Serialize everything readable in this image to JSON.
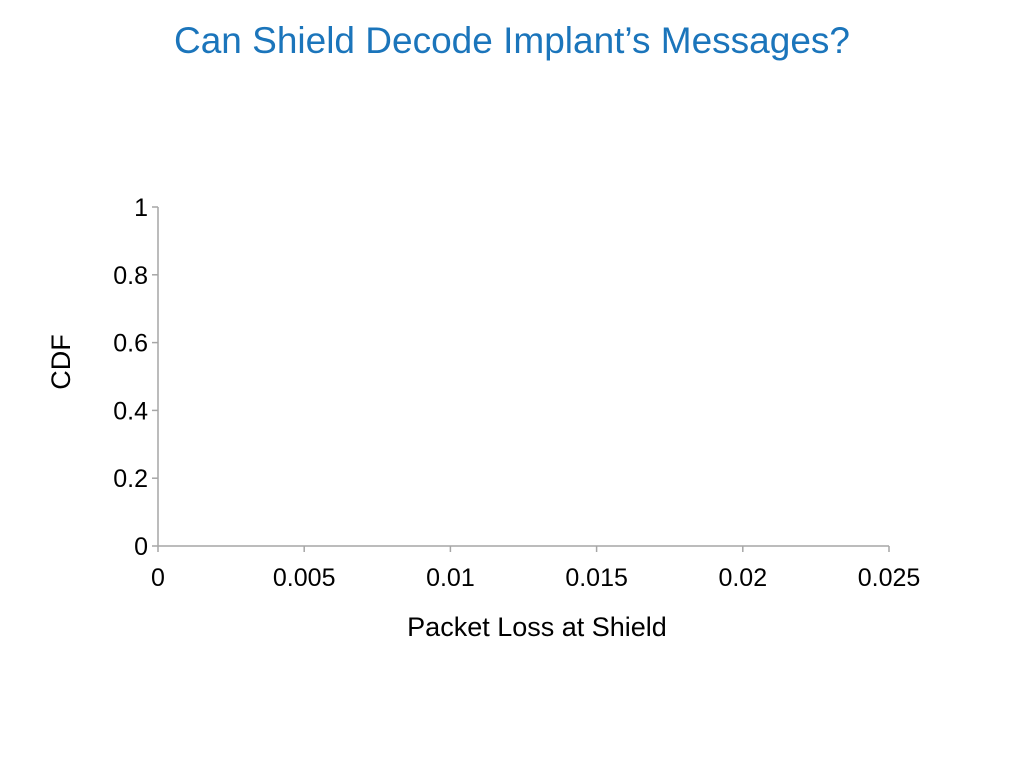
{
  "slide": {
    "title": "Can Shield Decode Implant’s Messages?"
  },
  "colors": {
    "title": "#1b75bb",
    "axis": "#a6a6a6",
    "text": "#000000"
  },
  "chart_data": {
    "type": "line",
    "title": "",
    "xlabel": "Packet Loss at Shield",
    "ylabel": "CDF",
    "xlim": [
      0,
      0.025
    ],
    "ylim": [
      0,
      1
    ],
    "x_ticks": [
      "0",
      "0.005",
      "0.01",
      "0.015",
      "0.02",
      "0.025"
    ],
    "y_ticks": [
      "0",
      "0.2",
      "0.4",
      "0.6",
      "0.8",
      "1"
    ],
    "grid": false,
    "legend": "none",
    "series": []
  }
}
